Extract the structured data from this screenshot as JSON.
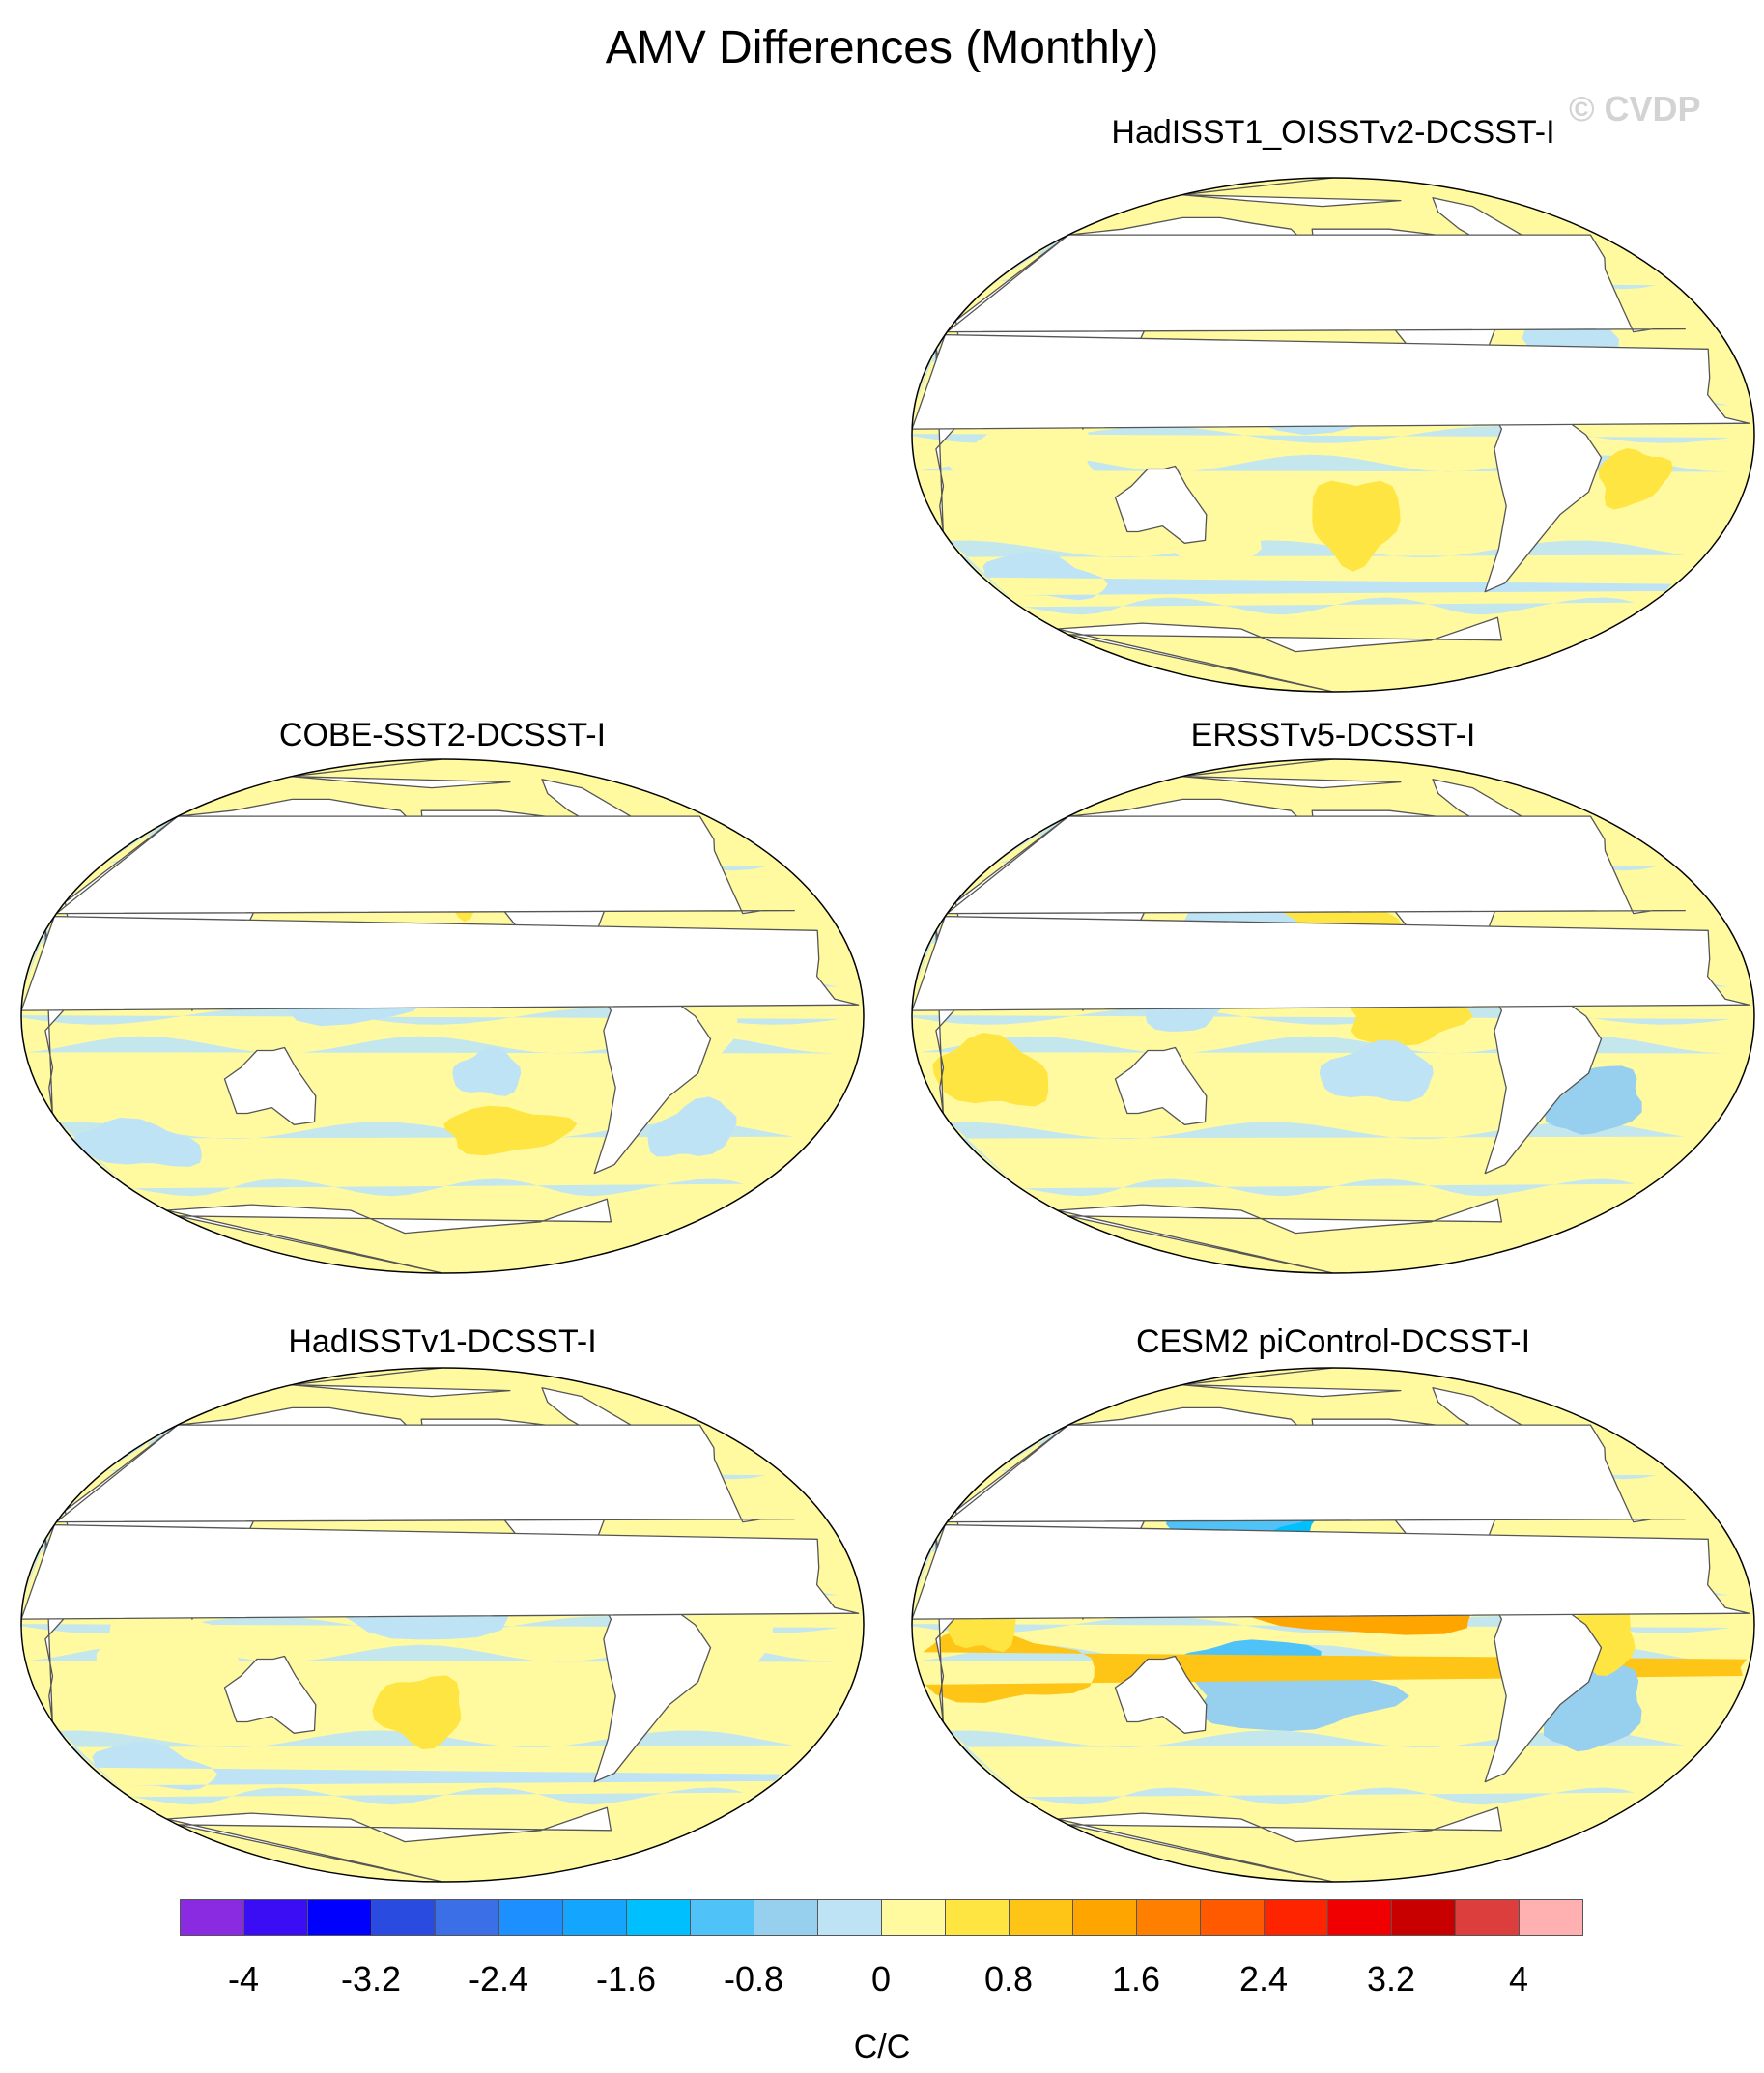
{
  "title": "AMV Differences (Monthly)",
  "watermark": "© CVDP",
  "colors": {
    "land": "#ffffff",
    "coast": "#555555",
    "level_colors": [
      "#8a2be2",
      "#3a0df5",
      "#0000ff",
      "#2a4bdf",
      "#3b6fe8",
      "#1e8fff",
      "#14a6ff",
      "#00bfff",
      "#4fc3f7",
      "#97cfee",
      "#bee3f5",
      "#fffaa0",
      "#ffe542",
      "#ffc516",
      "#ffa500",
      "#ff7f00",
      "#ff5a00",
      "#ff2400",
      "#f00000",
      "#c80000",
      "#dc3e3e",
      "#ffb0b0"
    ]
  },
  "chart_data": {
    "type": "heatmap",
    "projection": "robinson-like, Pacific-centered",
    "colorbar": {
      "tick_labels": [
        "-4",
        "-3.2",
        "-2.4",
        "-1.6",
        "-0.8",
        "0",
        "0.8",
        "1.6",
        "2.4",
        "3.2",
        "4"
      ],
      "units": "C/C",
      "range": [
        -4.4,
        4.4
      ],
      "levels": [
        -4,
        -3.6,
        -3.2,
        -2.8,
        -2.4,
        -2,
        -1.6,
        -1.2,
        -0.8,
        -0.4,
        0,
        0.4,
        0.8,
        1.2,
        1.6,
        2,
        2.4,
        2.8,
        3.2,
        3.6,
        4
      ]
    },
    "panels": [
      {
        "id": "hadisst1-oisstv2",
        "title": "HadISST1_OISSTv2-DCSST-I",
        "row": 0,
        "col": 1,
        "features": [
          {
            "value": 0.2,
            "lon": 160,
            "lat": 45,
            "rx": 20,
            "ry": 8
          },
          {
            "value": -0.6,
            "lon": 195,
            "lat": 50,
            "rx": 10,
            "ry": 5
          },
          {
            "value": -0.3,
            "lon": 210,
            "lat": 15,
            "rx": 45,
            "ry": 15
          },
          {
            "value": 0.5,
            "lon": 220,
            "lat": -30,
            "rx": 20,
            "ry": 15
          },
          {
            "value": 0.3,
            "lon": 150,
            "lat": -35,
            "rx": 30,
            "ry": 10
          },
          {
            "value": -0.3,
            "lon": 60,
            "lat": -50,
            "rx": 30,
            "ry": 8
          },
          {
            "value": 0.3,
            "lon": 80,
            "lat": -10,
            "rx": 30,
            "ry": 15
          },
          {
            "value": -0.3,
            "lon": 320,
            "lat": 30,
            "rx": 20,
            "ry": 12
          },
          {
            "value": 0.4,
            "lon": 340,
            "lat": -15,
            "rx": 15,
            "ry": 10
          }
        ]
      },
      {
        "id": "cobe-sst2",
        "title": "COBE-SST2-DCSST-I",
        "row": 1,
        "col": 0,
        "features": [
          {
            "value": 0.7,
            "lon": 220,
            "lat": 45,
            "rx": 10,
            "ry": 10
          },
          {
            "value": -0.4,
            "lon": 200,
            "lat": 48,
            "rx": 10,
            "ry": 5
          },
          {
            "value": -0.3,
            "lon": 170,
            "lat": 10,
            "rx": 40,
            "ry": 12
          },
          {
            "value": -0.4,
            "lon": 230,
            "lat": -20,
            "rx": 15,
            "ry": 8
          },
          {
            "value": 0.4,
            "lon": 240,
            "lat": -40,
            "rx": 30,
            "ry": 8
          },
          {
            "value": -0.3,
            "lon": 60,
            "lat": -45,
            "rx": 30,
            "ry": 8
          },
          {
            "value": 0.3,
            "lon": 320,
            "lat": 10,
            "rx": 20,
            "ry": 25
          },
          {
            "value": -0.3,
            "lon": 330,
            "lat": -40,
            "rx": 20,
            "ry": 10
          }
        ]
      },
      {
        "id": "ersstv5",
        "title": "ERSSTv5-DCSST-I",
        "row": 1,
        "col": 1,
        "features": [
          {
            "value": 0.8,
            "lon": 205,
            "lat": 55,
            "rx": 10,
            "ry": 5
          },
          {
            "value": 0.5,
            "lon": 210,
            "lat": 30,
            "rx": 30,
            "ry": 15
          },
          {
            "value": -0.3,
            "lon": 165,
            "lat": 30,
            "rx": 25,
            "ry": 12
          },
          {
            "value": -0.3,
            "lon": 145,
            "lat": 5,
            "rx": 20,
            "ry": 10
          },
          {
            "value": 0.5,
            "lon": 240,
            "lat": 0,
            "rx": 25,
            "ry": 10
          },
          {
            "value": -0.3,
            "lon": 230,
            "lat": -20,
            "rx": 25,
            "ry": 10
          },
          {
            "value": 0.4,
            "lon": 60,
            "lat": -20,
            "rx": 25,
            "ry": 12
          },
          {
            "value": -0.6,
            "lon": 330,
            "lat": -30,
            "rx": 20,
            "ry": 12
          },
          {
            "value": -0.4,
            "lon": 320,
            "lat": 50,
            "rx": 12,
            "ry": 10
          }
        ]
      },
      {
        "id": "hadisstv1",
        "title": "HadISSTv1-DCSST-I",
        "row": 2,
        "col": 0,
        "features": [
          {
            "value": -0.6,
            "lon": 195,
            "lat": 50,
            "rx": 8,
            "ry": 5
          },
          {
            "value": 0.3,
            "lon": 160,
            "lat": 45,
            "rx": 20,
            "ry": 8
          },
          {
            "value": 0.7,
            "lon": 210,
            "lat": 62,
            "rx": 8,
            "ry": 4
          },
          {
            "value": -0.3,
            "lon": 200,
            "lat": 10,
            "rx": 45,
            "ry": 15
          },
          {
            "value": 0.4,
            "lon": 200,
            "lat": -30,
            "rx": 20,
            "ry": 12
          },
          {
            "value": 0.3,
            "lon": 90,
            "lat": -10,
            "rx": 30,
            "ry": 15
          },
          {
            "value": -0.3,
            "lon": 60,
            "lat": -50,
            "rx": 30,
            "ry": 8
          },
          {
            "value": 0.3,
            "lon": 330,
            "lat": 0,
            "rx": 20,
            "ry": 20
          }
        ]
      },
      {
        "id": "cesm2-picontrol",
        "title": "CESM2 piControl-DCSST-I",
        "row": 2,
        "col": 1,
        "features": [
          {
            "value": -1.6,
            "lon": 175,
            "lat": 35,
            "rx": 30,
            "ry": 16
          },
          {
            "value": -1.0,
            "lon": 165,
            "lat": 45,
            "rx": 35,
            "ry": 18
          },
          {
            "value": -1.2,
            "lon": 175,
            "lat": -15,
            "rx": 30,
            "ry": 10
          },
          {
            "value": -0.6,
            "lon": 190,
            "lat": -25,
            "rx": 45,
            "ry": 12
          },
          {
            "value": 1.4,
            "lon": 225,
            "lat": 5,
            "rx": 55,
            "ry": 8
          },
          {
            "value": 1.1,
            "lon": 65,
            "lat": -15,
            "rx": 40,
            "ry": 12
          },
          {
            "value": 0.7,
            "lon": 60,
            "lat": 5,
            "rx": 15,
            "ry": 15
          },
          {
            "value": -0.8,
            "lon": 330,
            "lat": -30,
            "rx": 20,
            "ry": 15
          },
          {
            "value": 1.4,
            "lon": 335,
            "lat": 65,
            "rx": 8,
            "ry": 5
          },
          {
            "value": -0.6,
            "lon": 320,
            "lat": 50,
            "rx": 10,
            "ry": 8
          },
          {
            "value": 0.7,
            "lon": 325,
            "lat": -5,
            "rx": 15,
            "ry": 12
          }
        ]
      }
    ]
  }
}
